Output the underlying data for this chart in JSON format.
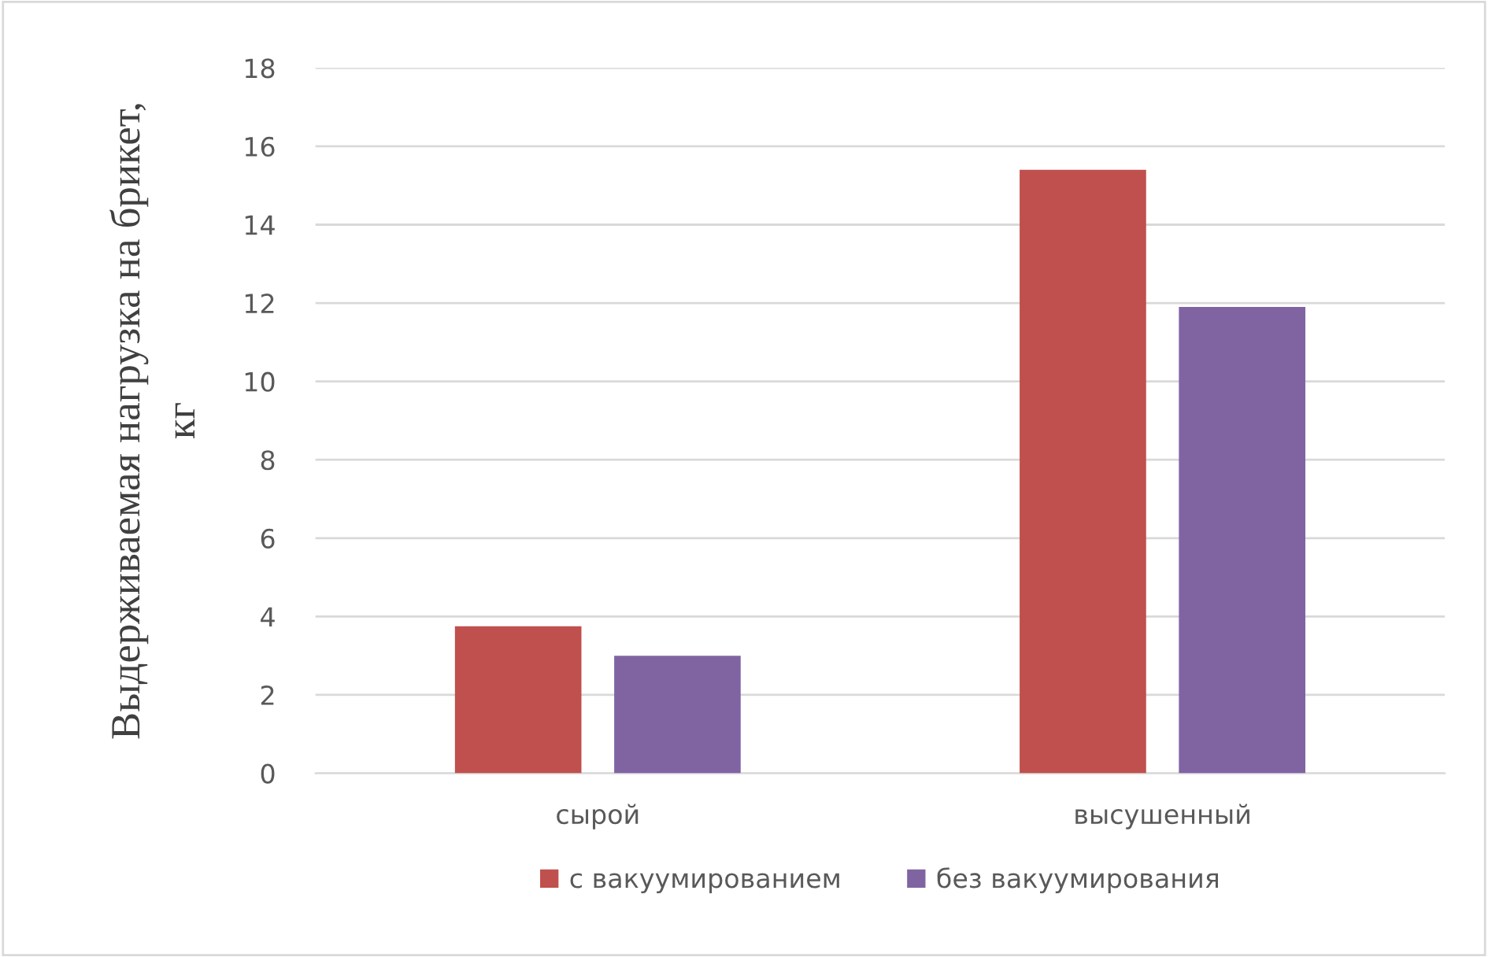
{
  "chart_data": {
    "type": "bar",
    "ylabel": "Выдерживаемая нагрузка на брикет,\nкг",
    "categories": [
      "сырой",
      "высушенный"
    ],
    "series": [
      {
        "name": "с вакуумированием",
        "color": "#c0504d",
        "values": [
          3.75,
          15.4
        ]
      },
      {
        "name": "без вакуумирования",
        "color": "#8064a2",
        "values": [
          3.0,
          11.9
        ]
      }
    ],
    "ylim": [
      0,
      18
    ],
    "yticks": [
      0,
      2,
      4,
      6,
      8,
      10,
      12,
      14,
      16,
      18
    ],
    "grid": "y",
    "legend": "bottom"
  }
}
